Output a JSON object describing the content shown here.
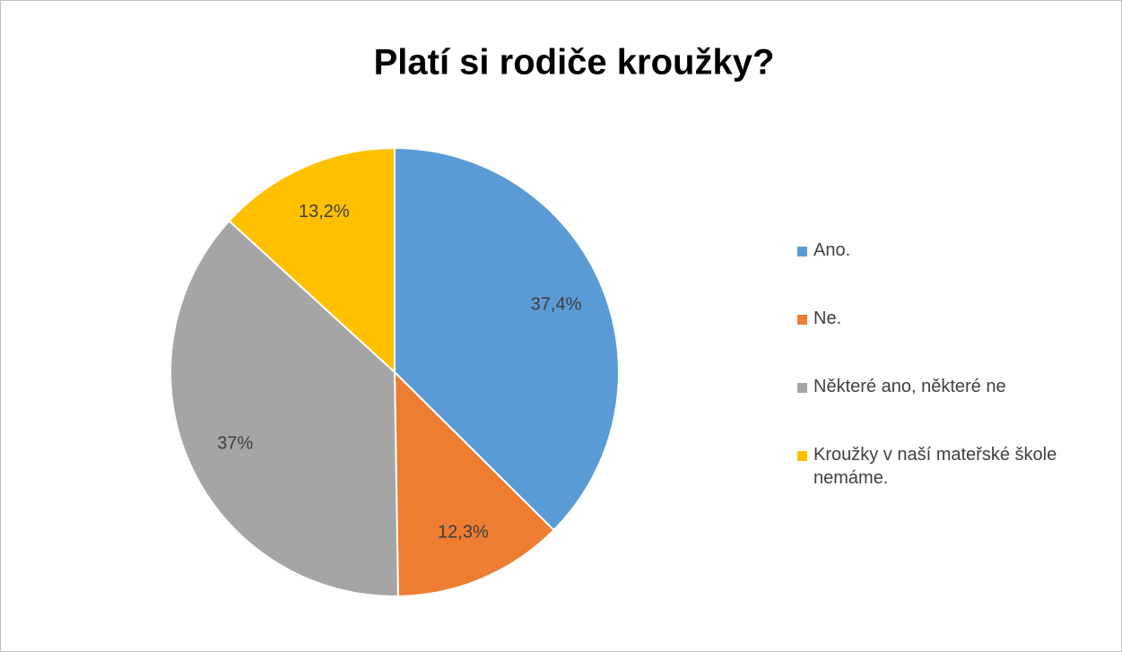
{
  "chart_data": {
    "type": "pie",
    "title": "Platí si rodiče kroužky?",
    "categories": [
      "Ano.",
      "Ne.",
      "Některé ano, některé ne",
      "Kroužky v naší mateřské škole nemáme."
    ],
    "values": [
      37.4,
      12.3,
      37,
      13.2
    ],
    "value_labels": [
      "37,4%",
      "12,3%",
      "37%",
      "13,2%"
    ],
    "colors": [
      "#5b9bd5",
      "#ed7d31",
      "#a5a5a5",
      "#ffc000"
    ],
    "legend": "right"
  }
}
